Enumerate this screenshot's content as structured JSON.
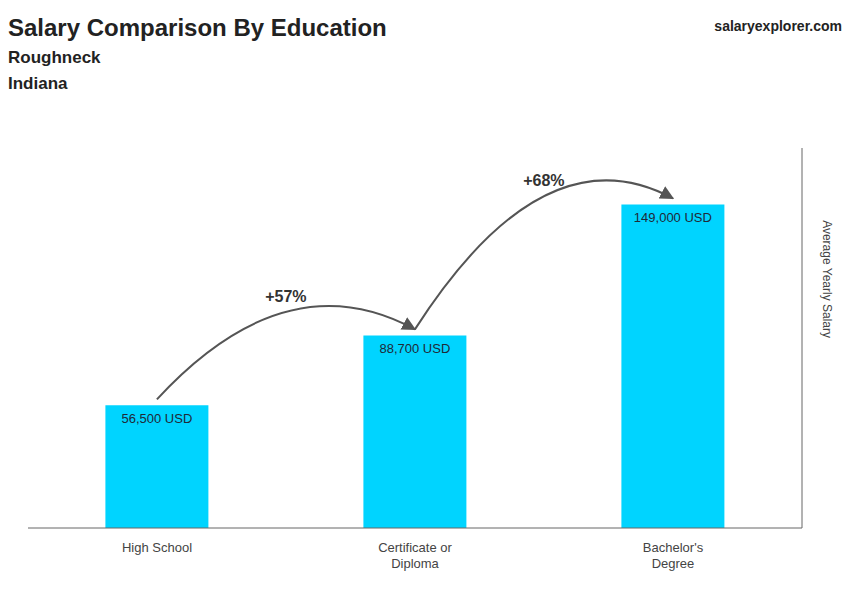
{
  "chart_data": {
    "type": "bar",
    "title": "Salary Comparison By Education",
    "subtitle": [
      "Roughneck",
      "Indiana"
    ],
    "watermark": [
      "salary",
      "explorer",
      ".com"
    ],
    "ylabel": "Average Yearly Salary",
    "categories": [
      "High School",
      "Certificate or\nDiploma",
      "Bachelor's\nDegree"
    ],
    "values": [
      56500,
      88700,
      149000
    ],
    "value_labels": [
      "56,500 USD",
      "88,700 USD",
      "149,000 USD"
    ],
    "data_labels": true,
    "pct_labels": [
      "+57%",
      "+68%"
    ],
    "color": "#00d4ff",
    "ylim": [
      0,
      175000
    ],
    "grid": false,
    "tick_labels": "x"
  }
}
